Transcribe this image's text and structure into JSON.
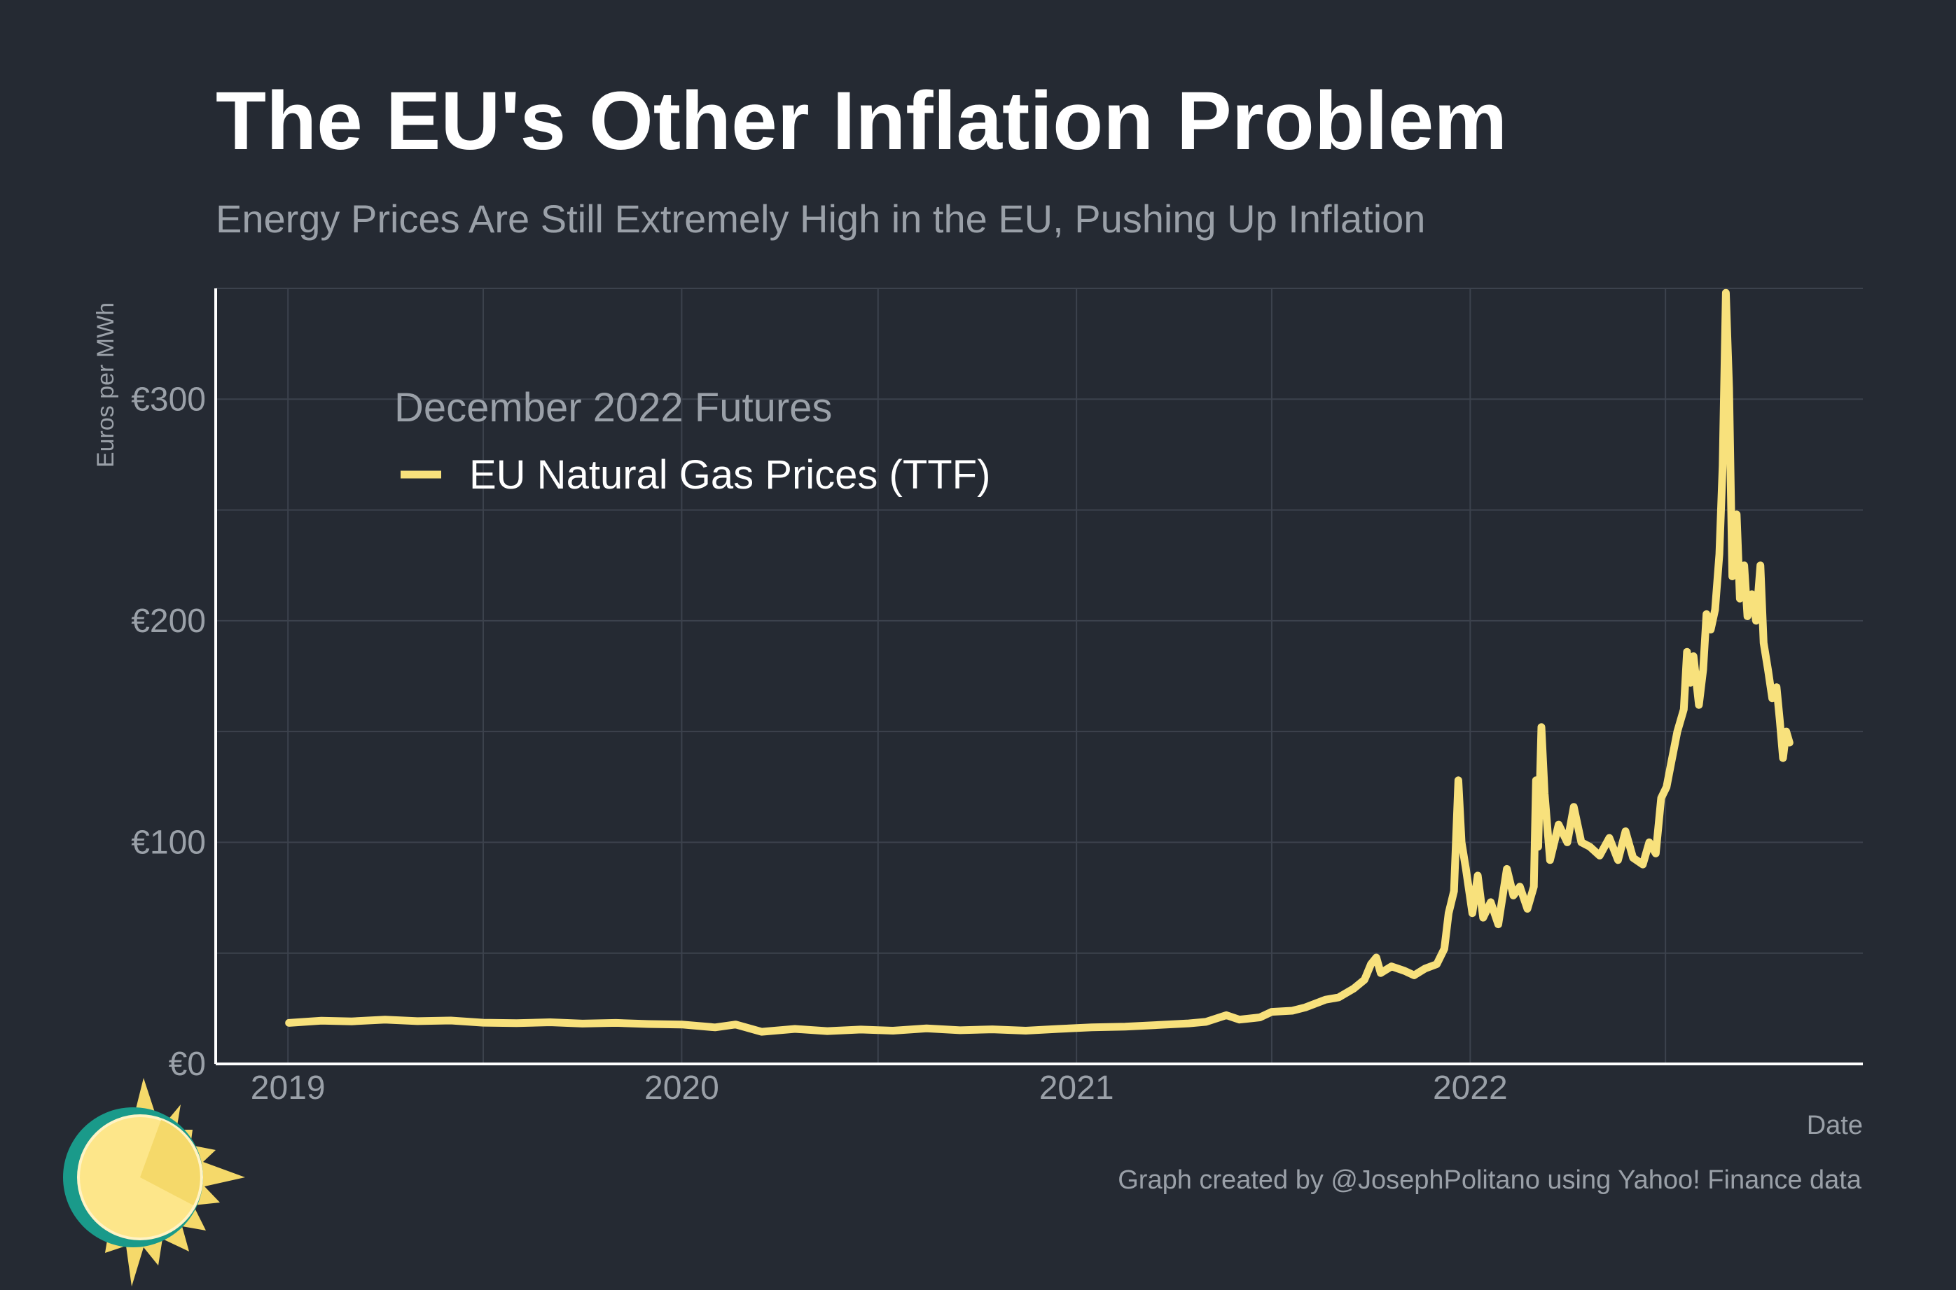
{
  "title": "The EU's Other Inflation Problem",
  "subtitle": "Energy Prices Are Still Extremely High in the EU, Pushing Up Inflation",
  "caption": "Graph created by @JosephPolitano using Yahoo! Finance data",
  "colors": {
    "background": "#252a33",
    "line": "#f8e17c",
    "grid": "#3c424d"
  },
  "chart_data": {
    "type": "line",
    "title": "The EU's Other Inflation Problem",
    "subtitle": "Energy Prices Are Still Extremely High in the EU, Pushing Up Inflation",
    "xlabel": "Date",
    "ylabel": "Euros per MWh",
    "xlim": [
      "2018-10-26",
      "2022-12-31"
    ],
    "ylim": [
      0,
      350
    ],
    "x_ticks": [
      "2019",
      "2020",
      "2021",
      "2022"
    ],
    "y_ticks": [
      "€0",
      "€100",
      "€200",
      "€300"
    ],
    "y_tick_values": [
      0,
      100,
      200,
      300
    ],
    "legend": {
      "title": "December 2022 Futures",
      "position": "top-left"
    },
    "series": [
      {
        "name": "EU Natural Gas Prices (TTF)",
        "points": [
          [
            "2019-01-02",
            18.5
          ],
          [
            "2019-02-01",
            19.5
          ],
          [
            "2019-03-01",
            19.2
          ],
          [
            "2019-04-01",
            20.0
          ],
          [
            "2019-05-01",
            19.3
          ],
          [
            "2019-06-01",
            19.6
          ],
          [
            "2019-07-01",
            18.6
          ],
          [
            "2019-08-01",
            18.4
          ],
          [
            "2019-09-01",
            18.8
          ],
          [
            "2019-10-01",
            18.2
          ],
          [
            "2019-11-01",
            18.5
          ],
          [
            "2019-12-01",
            18.0
          ],
          [
            "2020-01-01",
            17.8
          ],
          [
            "2020-02-01",
            16.5
          ],
          [
            "2020-02-20",
            17.8
          ],
          [
            "2020-03-15",
            14.5
          ],
          [
            "2020-04-15",
            15.8
          ],
          [
            "2020-05-15",
            14.8
          ],
          [
            "2020-06-15",
            15.5
          ],
          [
            "2020-07-15",
            15.0
          ],
          [
            "2020-08-15",
            16.0
          ],
          [
            "2020-09-15",
            15.2
          ],
          [
            "2020-10-15",
            15.6
          ],
          [
            "2020-11-15",
            15.0
          ],
          [
            "2020-12-15",
            15.8
          ],
          [
            "2021-01-15",
            16.5
          ],
          [
            "2021-02-15",
            16.8
          ],
          [
            "2021-03-15",
            17.5
          ],
          [
            "2021-04-15",
            18.3
          ],
          [
            "2021-05-01",
            19.0
          ],
          [
            "2021-05-20",
            22.0
          ],
          [
            "2021-06-01",
            20.0
          ],
          [
            "2021-06-20",
            21.0
          ],
          [
            "2021-07-01",
            23.5
          ],
          [
            "2021-07-20",
            24.0
          ],
          [
            "2021-08-01",
            25.5
          ],
          [
            "2021-08-20",
            29.0
          ],
          [
            "2021-09-01",
            30.0
          ],
          [
            "2021-09-15",
            34.0
          ],
          [
            "2021-09-25",
            38.0
          ],
          [
            "2021-10-01",
            45.0
          ],
          [
            "2021-10-06",
            48.0
          ],
          [
            "2021-10-10",
            41.0
          ],
          [
            "2021-10-20",
            44.0
          ],
          [
            "2021-11-01",
            42.0
          ],
          [
            "2021-11-10",
            40.0
          ],
          [
            "2021-11-20",
            43.0
          ],
          [
            "2021-12-01",
            45.0
          ],
          [
            "2021-12-08",
            52.0
          ],
          [
            "2021-12-12",
            68.0
          ],
          [
            "2021-12-17",
            78.0
          ],
          [
            "2021-12-21",
            128.0
          ],
          [
            "2021-12-24",
            100.0
          ],
          [
            "2021-12-28",
            88.0
          ],
          [
            "2022-01-03",
            68.0
          ],
          [
            "2022-01-08",
            85.0
          ],
          [
            "2022-01-13",
            66.0
          ],
          [
            "2022-01-20",
            73.0
          ],
          [
            "2022-01-27",
            63.0
          ],
          [
            "2022-02-04",
            88.0
          ],
          [
            "2022-02-10",
            76.0
          ],
          [
            "2022-02-16",
            80.0
          ],
          [
            "2022-02-23",
            70.0
          ],
          [
            "2022-03-01",
            80.0
          ],
          [
            "2022-03-03",
            128.0
          ],
          [
            "2022-03-05",
            98.0
          ],
          [
            "2022-03-08",
            152.0
          ],
          [
            "2022-03-11",
            122.0
          ],
          [
            "2022-03-16",
            92.0
          ],
          [
            "2022-03-24",
            108.0
          ],
          [
            "2022-04-01",
            100.0
          ],
          [
            "2022-04-07",
            116.0
          ],
          [
            "2022-04-14",
            100.0
          ],
          [
            "2022-04-22",
            98.0
          ],
          [
            "2022-05-01",
            94.0
          ],
          [
            "2022-05-10",
            102.0
          ],
          [
            "2022-05-18",
            92.0
          ],
          [
            "2022-05-25",
            105.0
          ],
          [
            "2022-06-01",
            93.0
          ],
          [
            "2022-06-10",
            90.0
          ],
          [
            "2022-06-16",
            100.0
          ],
          [
            "2022-06-22",
            95.0
          ],
          [
            "2022-06-27",
            120.0
          ],
          [
            "2022-07-02",
            125.0
          ],
          [
            "2022-07-06",
            135.0
          ],
          [
            "2022-07-12",
            150.0
          ],
          [
            "2022-07-18",
            160.0
          ],
          [
            "2022-07-21",
            186.0
          ],
          [
            "2022-07-24",
            172.0
          ],
          [
            "2022-07-27",
            184.0
          ],
          [
            "2022-08-01",
            162.0
          ],
          [
            "2022-08-05",
            178.0
          ],
          [
            "2022-08-08",
            203.0
          ],
          [
            "2022-08-12",
            196.0
          ],
          [
            "2022-08-16",
            205.0
          ],
          [
            "2022-08-20",
            230.0
          ],
          [
            "2022-08-23",
            270.0
          ],
          [
            "2022-08-26",
            348.0
          ],
          [
            "2022-08-29",
            305.0
          ],
          [
            "2022-09-01",
            220.0
          ],
          [
            "2022-09-05",
            248.0
          ],
          [
            "2022-09-08",
            210.0
          ],
          [
            "2022-09-12",
            225.0
          ],
          [
            "2022-09-15",
            202.0
          ],
          [
            "2022-09-19",
            212.0
          ],
          [
            "2022-09-23",
            200.0
          ],
          [
            "2022-09-27",
            225.0
          ],
          [
            "2022-09-30",
            190.0
          ],
          [
            "2022-10-04",
            178.0
          ],
          [
            "2022-10-08",
            165.0
          ],
          [
            "2022-10-12",
            170.0
          ],
          [
            "2022-10-15",
            155.0
          ],
          [
            "2022-10-18",
            138.0
          ],
          [
            "2022-10-21",
            150.0
          ],
          [
            "2022-10-24",
            145.0
          ]
        ]
      }
    ]
  }
}
